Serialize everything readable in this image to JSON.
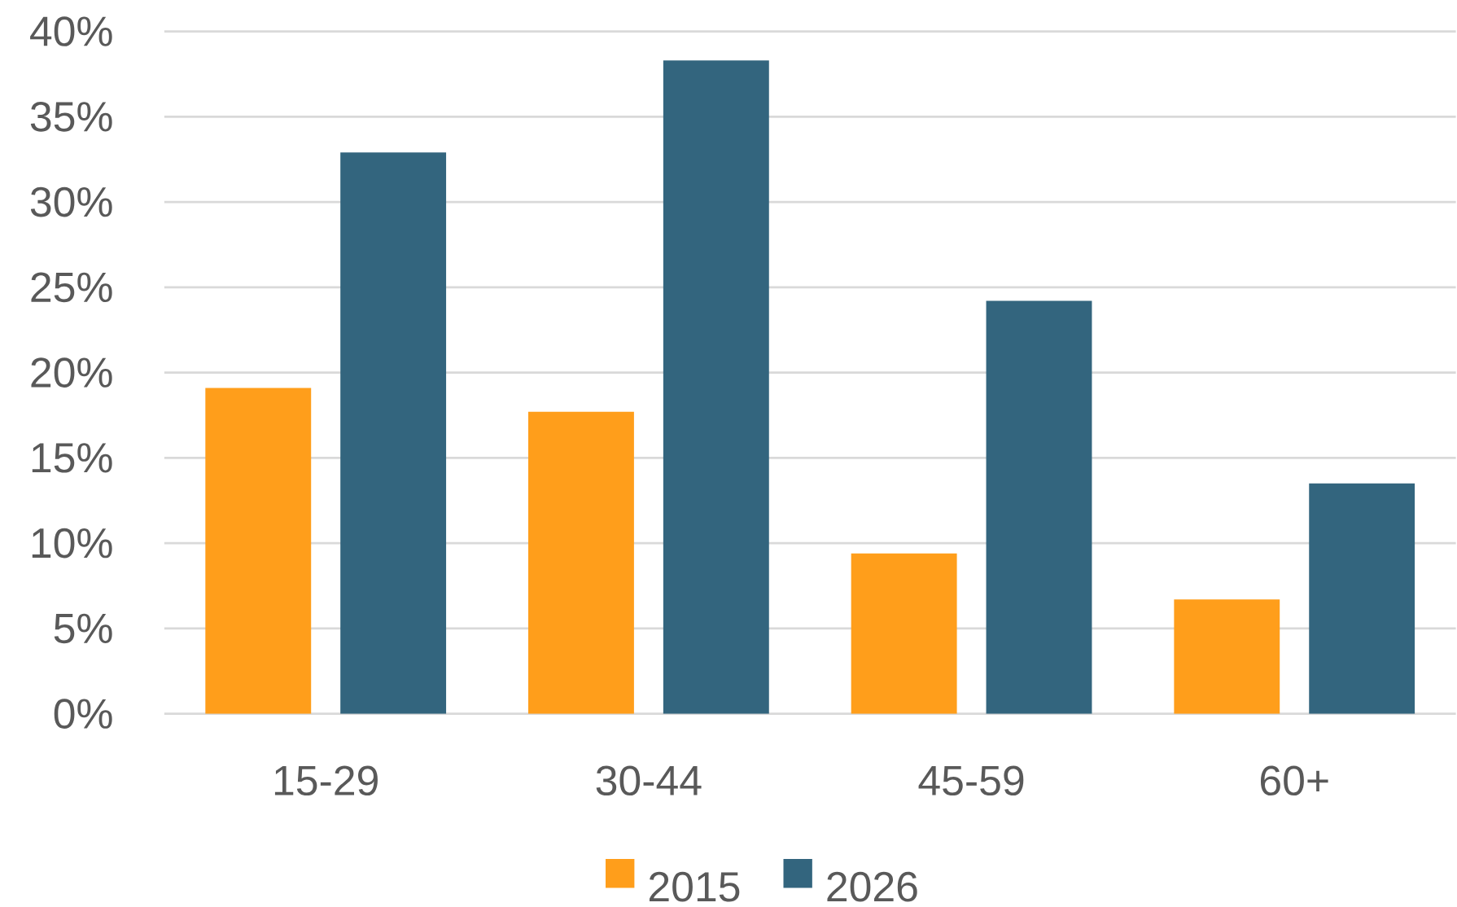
{
  "chart_data": {
    "type": "bar",
    "categories": [
      "15-29",
      "30-44",
      "45-59",
      "60+"
    ],
    "series": [
      {
        "name": "2015",
        "color": "#FF9E1B",
        "values": [
          19.1,
          17.7,
          9.4,
          6.7
        ]
      },
      {
        "name": "2026",
        "color": "#33657E",
        "values": [
          32.9,
          38.3,
          24.2,
          13.5
        ]
      }
    ],
    "ylim": [
      0,
      40
    ],
    "yticks": [
      {
        "value": 0,
        "label": "0%"
      },
      {
        "value": 5,
        "label": "5%"
      },
      {
        "value": 10,
        "label": "10%"
      },
      {
        "value": 15,
        "label": "15%"
      },
      {
        "value": 20,
        "label": "20%"
      },
      {
        "value": 25,
        "label": "25%"
      },
      {
        "value": 30,
        "label": "30%"
      },
      {
        "value": 35,
        "label": "35%"
      },
      {
        "value": 40,
        "label": "40%"
      }
    ],
    "grid": "y",
    "legend": "bottom"
  }
}
